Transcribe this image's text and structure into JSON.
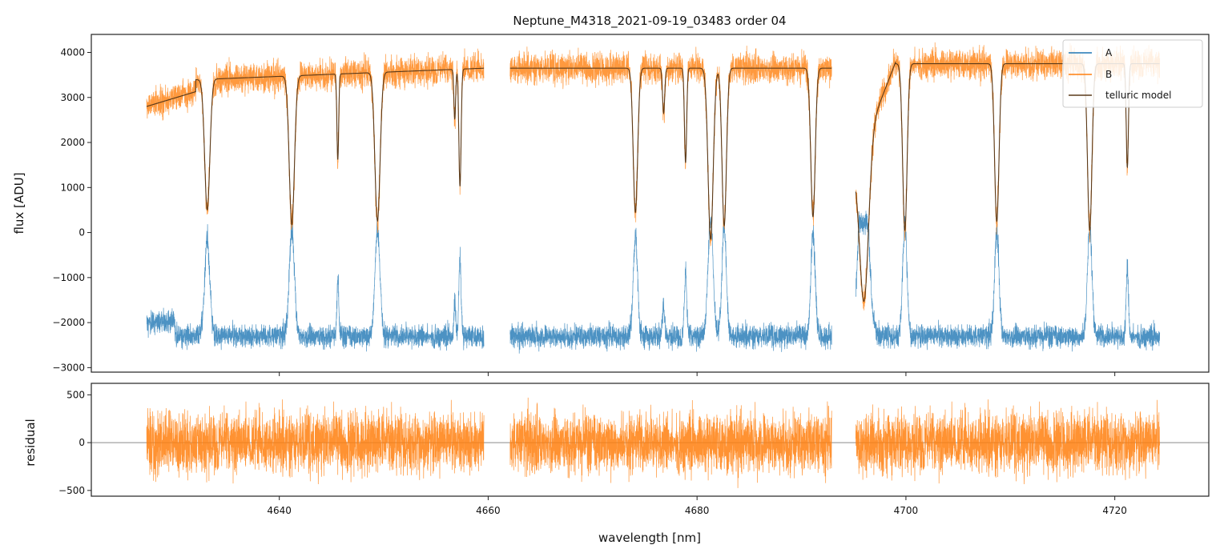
{
  "chart_data": [
    {
      "type": "line",
      "title": "Neptune_M4318_2021-09-19_03483  order 04",
      "xlabel": "",
      "ylabel": "flux [ADU]",
      "xlim": [
        4622,
        4729
      ],
      "ylim": [
        -3100,
        4400
      ],
      "x_ticks": [
        4640,
        4660,
        4680,
        4700,
        4720
      ],
      "y_ticks": [
        -3000,
        -2000,
        -1000,
        0,
        1000,
        2000,
        3000,
        4000
      ],
      "y_tick_labels": [
        "−3000",
        "−2000",
        "−1000",
        "0",
        "1000",
        "2000",
        "3000",
        "4000"
      ],
      "segments": [
        [
          4627.3,
          4659.6
        ],
        [
          4662.1,
          4692.9
        ],
        [
          4695.2,
          4724.3
        ]
      ],
      "absorption_lines": [
        {
          "x": 4633.1,
          "depth": 2900,
          "width": 0.35
        },
        {
          "x": 4641.2,
          "depth": 3300,
          "width": 0.35
        },
        {
          "x": 4645.6,
          "depth": 1900,
          "width": 0.12
        },
        {
          "x": 4649.4,
          "depth": 3300,
          "width": 0.35
        },
        {
          "x": 4656.8,
          "depth": 1100,
          "width": 0.12
        },
        {
          "x": 4657.3,
          "depth": 2600,
          "width": 0.15
        },
        {
          "x": 4674.1,
          "depth": 3200,
          "width": 0.3
        },
        {
          "x": 4676.8,
          "depth": 1000,
          "width": 0.15
        },
        {
          "x": 4678.9,
          "depth": 2100,
          "width": 0.15
        },
        {
          "x": 4681.3,
          "depth": 3800,
          "width": 0.35
        },
        {
          "x": 4682.6,
          "depth": 3500,
          "width": 0.3
        },
        {
          "x": 4691.1,
          "depth": 3300,
          "width": 0.3
        },
        {
          "x": 4696.0,
          "depth": 3500,
          "width": 0.6
        },
        {
          "x": 4699.9,
          "depth": 3700,
          "width": 0.3
        },
        {
          "x": 4708.7,
          "depth": 3500,
          "width": 0.3
        },
        {
          "x": 4717.6,
          "depth": 3700,
          "width": 0.3
        },
        {
          "x": 4721.2,
          "depth": 2300,
          "width": 0.15
        }
      ],
      "series": [
        {
          "name": "A",
          "color": "#1f77b4",
          "baseline": -2300
        },
        {
          "name": "B",
          "color": "#ff7f0e",
          "baseline": 3350
        },
        {
          "name": "telluric model",
          "color": "#5a3a1a",
          "baseline": 3350
        }
      ],
      "legend_position": "top-right"
    },
    {
      "type": "line",
      "xlabel": "wavelength [nm]",
      "ylabel": "residual",
      "xlim": [
        4622,
        4729
      ],
      "ylim": [
        -560,
        620
      ],
      "x_ticks": [
        4640,
        4660,
        4680,
        4700,
        4720
      ],
      "y_ticks": [
        -500,
        0,
        500
      ],
      "y_tick_labels": [
        "−500",
        "0",
        "500"
      ],
      "reference_line": 0,
      "series": [
        {
          "name": "B residual",
          "color": "#ff7f0e",
          "spread": 160
        }
      ]
    }
  ]
}
